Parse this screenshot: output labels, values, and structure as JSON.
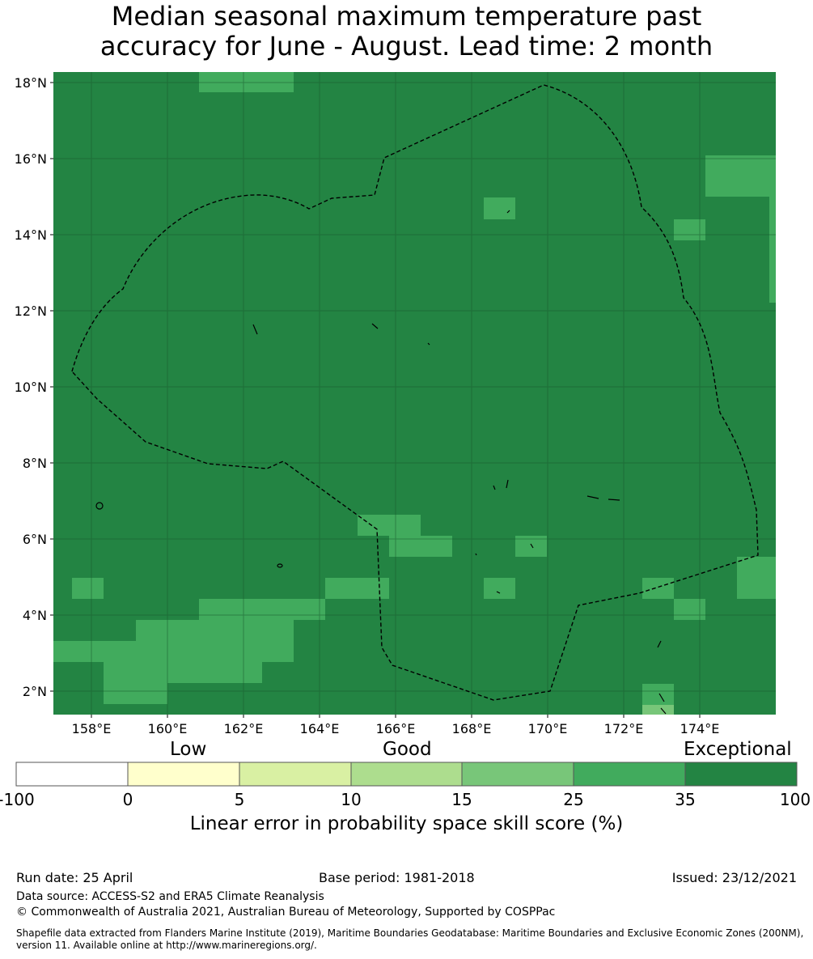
{
  "title": {
    "line1": "Median seasonal maximum temperature past",
    "line2": "accuracy for June - August. Lead time: 2 month"
  },
  "map": {
    "lat_labels": [
      "18°N",
      "16°N",
      "14°N",
      "12°N",
      "10°N",
      "8°N",
      "6°N",
      "4°N",
      "2°N"
    ],
    "lon_labels": [
      "158°E",
      "160°E",
      "162°E",
      "164°E",
      "166°E",
      "168°E",
      "170°E",
      "172°E",
      "174°E"
    ],
    "colors": {
      "exceptional": "#238443",
      "cat_25_35": "#41ab5d",
      "cat_15_25": "#78c679"
    }
  },
  "colorbar": {
    "category_labels": [
      "Low",
      "Good",
      "Exceptional"
    ],
    "ticks": [
      "-100",
      "0",
      "5",
      "10",
      "15",
      "25",
      "35",
      "100"
    ],
    "colors": [
      "#ffffff",
      "#ffffcc",
      "#d9f0a3",
      "#addd8e",
      "#78c679",
      "#41ab5d",
      "#238443"
    ],
    "title": "Linear error in probability space skill score (%)"
  },
  "footer": {
    "run_date": "Run date: 25 April",
    "base_period": "Base period: 1981-2018",
    "issued": "Issued: 23/12/2021",
    "data_source": "Data source: ACCESS-S2 and ERA5 Climate Reanalysis",
    "copyright": "© Commonwealth of Australia 2021, Australian Bureau of Meteorology, Supported by COSPPac",
    "shapefile_line1": "Shapefile data extracted from Flanders Marine Institute (2019), Maritime Boundaries Geodatabase: Maritime Boundaries and Exclusive Economic Zones (200NM),",
    "shapefile_line2": "version 11. Available online at http://www.marineregions.org/."
  }
}
